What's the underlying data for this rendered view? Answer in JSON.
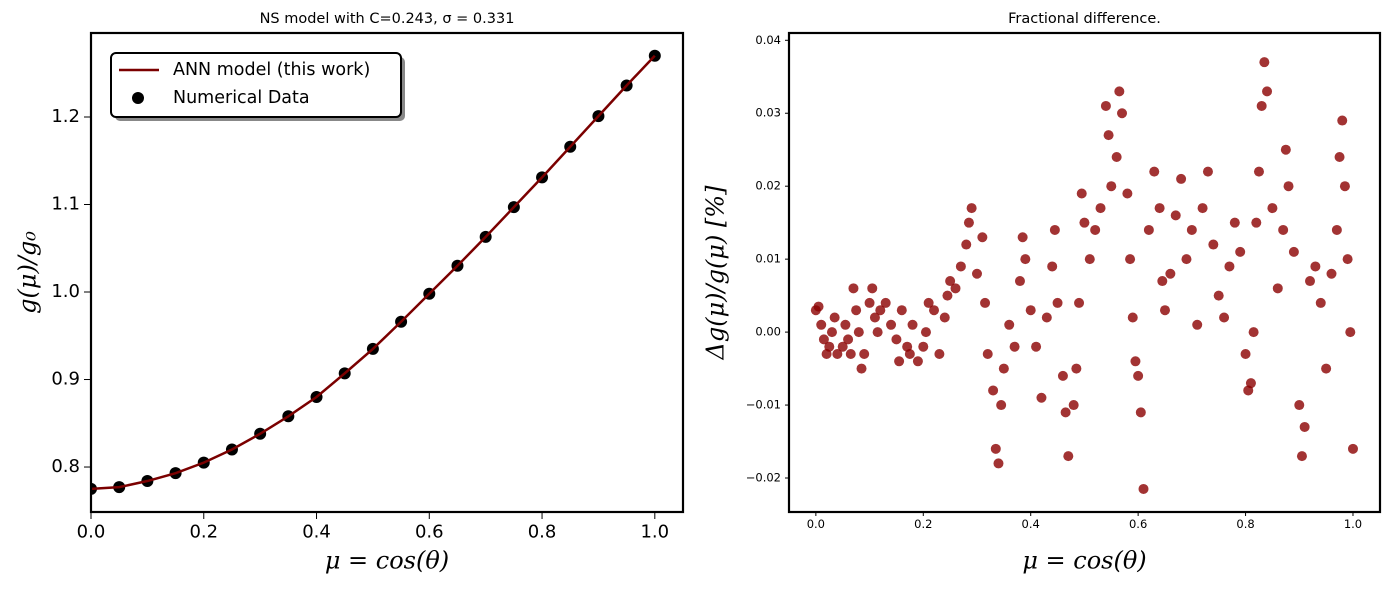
{
  "chart_data": [
    {
      "type": "line",
      "title": "NS model with C=0.243, σ = 0.331",
      "xlabel": "μ = cos(θ)",
      "ylabel": "g(μ)/g₀",
      "xlim": [
        0,
        1.05
      ],
      "ylim": [
        0.7486,
        1.296
      ],
      "xticks": [
        {
          "value": 0,
          "label": "0.0"
        },
        0.2,
        0.4,
        0.6,
        0.8,
        {
          "value": 1,
          "label": "1.0"
        }
      ],
      "yticks": [
        0.8,
        0.9,
        {
          "value": 1,
          "label": "1.0"
        },
        1.1,
        1.2
      ],
      "legend": "upper left",
      "x": [
        0,
        0.05,
        0.1,
        0.15,
        0.2,
        0.25,
        0.3,
        0.35,
        0.4,
        0.45,
        0.5,
        0.55,
        0.6,
        0.65,
        0.7,
        0.75,
        0.8,
        0.85,
        0.9,
        0.95,
        1.0
      ],
      "series": [
        {
          "name": "ANN model (this work)",
          "type": "line",
          "color": "#7b0000",
          "values": [
            0.775,
            0.777,
            0.784,
            0.793,
            0.805,
            0.82,
            0.838,
            0.858,
            0.88,
            0.907,
            0.935,
            0.966,
            0.998,
            1.03,
            1.063,
            1.097,
            1.131,
            1.166,
            1.201,
            1.236,
            1.27
          ]
        },
        {
          "name": "Numerical Data",
          "type": "scatter",
          "color": "#000000",
          "values": [
            0.775,
            0.777,
            0.784,
            0.793,
            0.805,
            0.82,
            0.838,
            0.858,
            0.88,
            0.907,
            0.935,
            0.966,
            0.998,
            1.03,
            1.063,
            1.097,
            1.131,
            1.166,
            1.201,
            1.236,
            1.27
          ]
        }
      ]
    },
    {
      "type": "scatter",
      "title": "Fractional difference.",
      "xlabel": "μ = cos(θ)",
      "ylabel": "Δg(μ)/g(μ)  [%]",
      "xlim": [
        -0.05,
        1.0503
      ],
      "ylim": [
        -0.02466,
        0.041
      ],
      "xticks": [
        {
          "value": 0,
          "label": "0.0"
        },
        0.2,
        0.4,
        0.6,
        0.8,
        {
          "value": 1,
          "label": "1.0"
        }
      ],
      "yticks": [
        {
          "value": -0.02,
          "label": "−0.02"
        },
        {
          "value": -0.01,
          "label": "−0.01"
        },
        {
          "value": 0,
          "label": "0.00"
        },
        0.01,
        0.02,
        0.03,
        0.04
      ],
      "color": "#8b0000",
      "x": [
        0,
        0.005,
        0.01,
        0.015,
        0.02,
        0.025,
        0.03,
        0.035,
        0.04,
        0.05,
        0.055,
        0.06,
        0.065,
        0.07,
        0.075,
        0.08,
        0.085,
        0.09,
        0.1,
        0.105,
        0.11,
        0.115,
        0.12,
        0.13,
        0.14,
        0.15,
        0.155,
        0.16,
        0.17,
        0.175,
        0.18,
        0.19,
        0.2,
        0.205,
        0.21,
        0.22,
        0.23,
        0.24,
        0.245,
        0.25,
        0.26,
        0.27,
        0.28,
        0.285,
        0.29,
        0.3,
        0.31,
        0.315,
        0.32,
        0.33,
        0.335,
        0.34,
        0.345,
        0.35,
        0.36,
        0.37,
        0.38,
        0.385,
        0.39,
        0.4,
        0.41,
        0.42,
        0.43,
        0.44,
        0.445,
        0.45,
        0.46,
        0.465,
        0.47,
        0.48,
        0.485,
        0.49,
        0.495,
        0.5,
        0.51,
        0.52,
        0.53,
        0.54,
        0.545,
        0.55,
        0.56,
        0.565,
        0.57,
        0.58,
        0.585,
        0.59,
        0.595,
        0.6,
        0.605,
        0.61,
        0.62,
        0.63,
        0.64,
        0.645,
        0.65,
        0.66,
        0.67,
        0.68,
        0.69,
        0.7,
        0.71,
        0.72,
        0.73,
        0.74,
        0.75,
        0.76,
        0.77,
        0.78,
        0.79,
        0.8,
        0.805,
        0.81,
        0.815,
        0.82,
        0.825,
        0.83,
        0.835,
        0.84,
        0.85,
        0.86,
        0.87,
        0.875,
        0.88,
        0.89,
        0.9,
        0.905,
        0.91,
        0.92,
        0.93,
        0.94,
        0.95,
        0.96,
        0.97,
        0.975,
        0.98,
        0.985,
        0.99,
        0.995,
        1.0
      ],
      "values": [
        0.003,
        0.0035,
        0.001,
        -0.001,
        -0.003,
        -0.002,
        0.0,
        0.002,
        -0.003,
        -0.002,
        0.001,
        -0.001,
        -0.003,
        0.006,
        0.003,
        0.0,
        -0.005,
        -0.003,
        0.004,
        0.006,
        0.002,
        0.0,
        0.003,
        0.004,
        0.001,
        -0.001,
        -0.004,
        0.003,
        -0.002,
        -0.003,
        0.001,
        -0.004,
        -0.002,
        0.0,
        0.004,
        0.003,
        -0.003,
        0.002,
        0.005,
        0.007,
        0.006,
        0.009,
        0.012,
        0.015,
        0.017,
        0.008,
        0.013,
        0.004,
        -0.003,
        -0.008,
        -0.016,
        -0.018,
        -0.01,
        -0.005,
        0.001,
        -0.002,
        0.007,
        0.013,
        0.01,
        0.003,
        -0.002,
        -0.009,
        0.002,
        0.009,
        0.014,
        0.004,
        -0.006,
        -0.011,
        -0.017,
        -0.01,
        -0.005,
        0.004,
        0.019,
        0.015,
        0.01,
        0.014,
        0.017,
        0.031,
        0.027,
        0.02,
        0.024,
        0.033,
        0.03,
        0.019,
        0.01,
        0.002,
        -0.004,
        -0.006,
        -0.011,
        -0.0215,
        0.014,
        0.022,
        0.017,
        0.007,
        0.003,
        0.008,
        0.016,
        0.021,
        0.01,
        0.014,
        0.001,
        0.017,
        0.022,
        0.012,
        0.005,
        0.002,
        0.009,
        0.015,
        0.011,
        -0.003,
        -0.008,
        -0.007,
        0.0,
        0.015,
        0.022,
        0.031,
        0.037,
        0.033,
        0.017,
        0.006,
        0.014,
        0.025,
        0.02,
        0.011,
        -0.01,
        -0.017,
        -0.013,
        0.007,
        0.009,
        0.004,
        -0.005,
        0.008,
        0.014,
        0.024,
        0.029,
        0.02,
        0.01,
        0.0,
        -0.016
      ]
    }
  ]
}
